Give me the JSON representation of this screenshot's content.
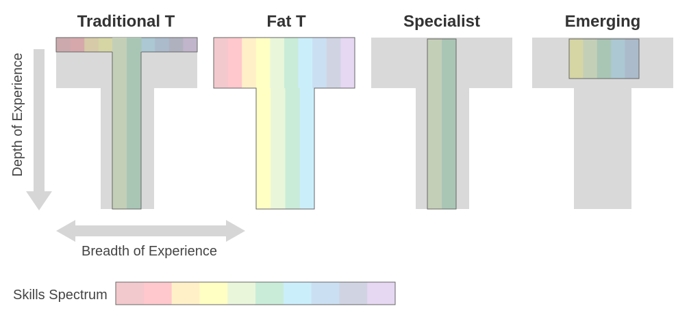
{
  "colors": {
    "gray": "#d9d9d9",
    "outline": "#666666",
    "arrow": "#d6d6d6",
    "spectrum": [
      "#f2c9cd",
      "#ffc8cc",
      "#fff0c8",
      "#ffffc4",
      "#e9f6da",
      "#c9ecd8",
      "#cbeefb",
      "#cbdff2",
      "#d0d4e2",
      "#e6d7f2"
    ]
  },
  "shapes": [
    {
      "title": "Traditional T",
      "spectrum_in": "bar-and-stem"
    },
    {
      "title": "Fat T",
      "spectrum_in": "full-wide"
    },
    {
      "title": "Specialist",
      "spectrum_in": "stem-only"
    },
    {
      "title": "Emerging",
      "spectrum_in": "partial-bar"
    }
  ],
  "axes": {
    "depth_label": "Depth of Experience",
    "breadth_label": "Breadth of Experience"
  },
  "legend": {
    "label": "Skills Spectrum"
  }
}
